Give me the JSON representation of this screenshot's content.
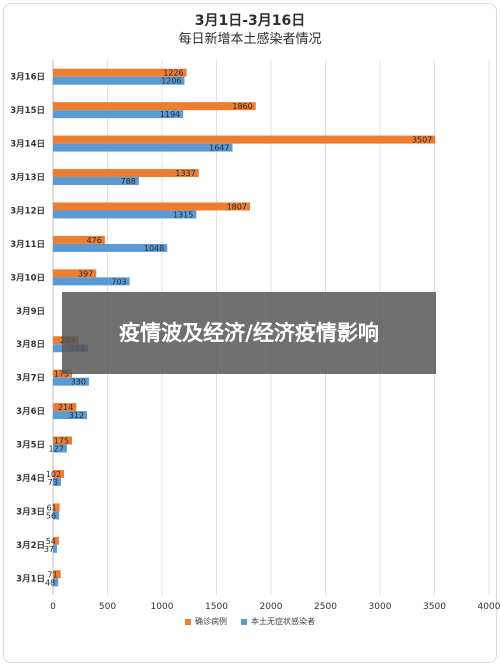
{
  "title": {
    "line1": "3月1日-3月16日",
    "line2": "每日新增本土感染者情况"
  },
  "overlay": {
    "text": "疫情波及经济/经济疫情影响"
  },
  "colors": {
    "confirmed": "#ED7D31",
    "asymptomatic": "#5B9BD5",
    "grid": "#d9d9d9",
    "text": "#333333"
  },
  "chart_data": {
    "type": "bar",
    "orientation": "horizontal",
    "categories": [
      "3月16日",
      "3月15日",
      "3月14日",
      "3月13日",
      "3月12日",
      "3月11日",
      "3月10日",
      "3月9日",
      "3月8日",
      "3月7日",
      "3月6日",
      "3月5日",
      "3月4日",
      "3月3日",
      "3月2日",
      "3月1日"
    ],
    "series": [
      {
        "name": "确诊病例",
        "values": [
          1226,
          1860,
          3507,
          1337,
          1807,
          476,
          397,
          0,
          233,
          175,
          214,
          175,
          102,
          61,
          54,
          71
        ],
        "labels": [
          "1226",
          "1860",
          "3507",
          "1337",
          "1807",
          "476",
          "397",
          "",
          "233",
          "175",
          "214",
          "175",
          "102",
          "61",
          "54",
          "71"
        ]
      },
      {
        "name": "本土无症状感染者",
        "values": [
          1206,
          1194,
          1647,
          788,
          1315,
          1048,
          703,
          0,
          322,
          330,
          312,
          127,
          73,
          56,
          37,
          48
        ],
        "labels": [
          "1206",
          "1194",
          "1647",
          "788",
          "1315",
          "1048",
          "703",
          "",
          "322",
          "330",
          "312",
          "127",
          "73",
          "56",
          "37",
          "48"
        ]
      }
    ],
    "xlim": [
      0,
      4000
    ],
    "xticks": [
      "0",
      "500",
      "1000",
      "1500",
      "2000",
      "2500",
      "3000",
      "3500",
      "4000"
    ],
    "grid": true,
    "legend": "bottom"
  }
}
